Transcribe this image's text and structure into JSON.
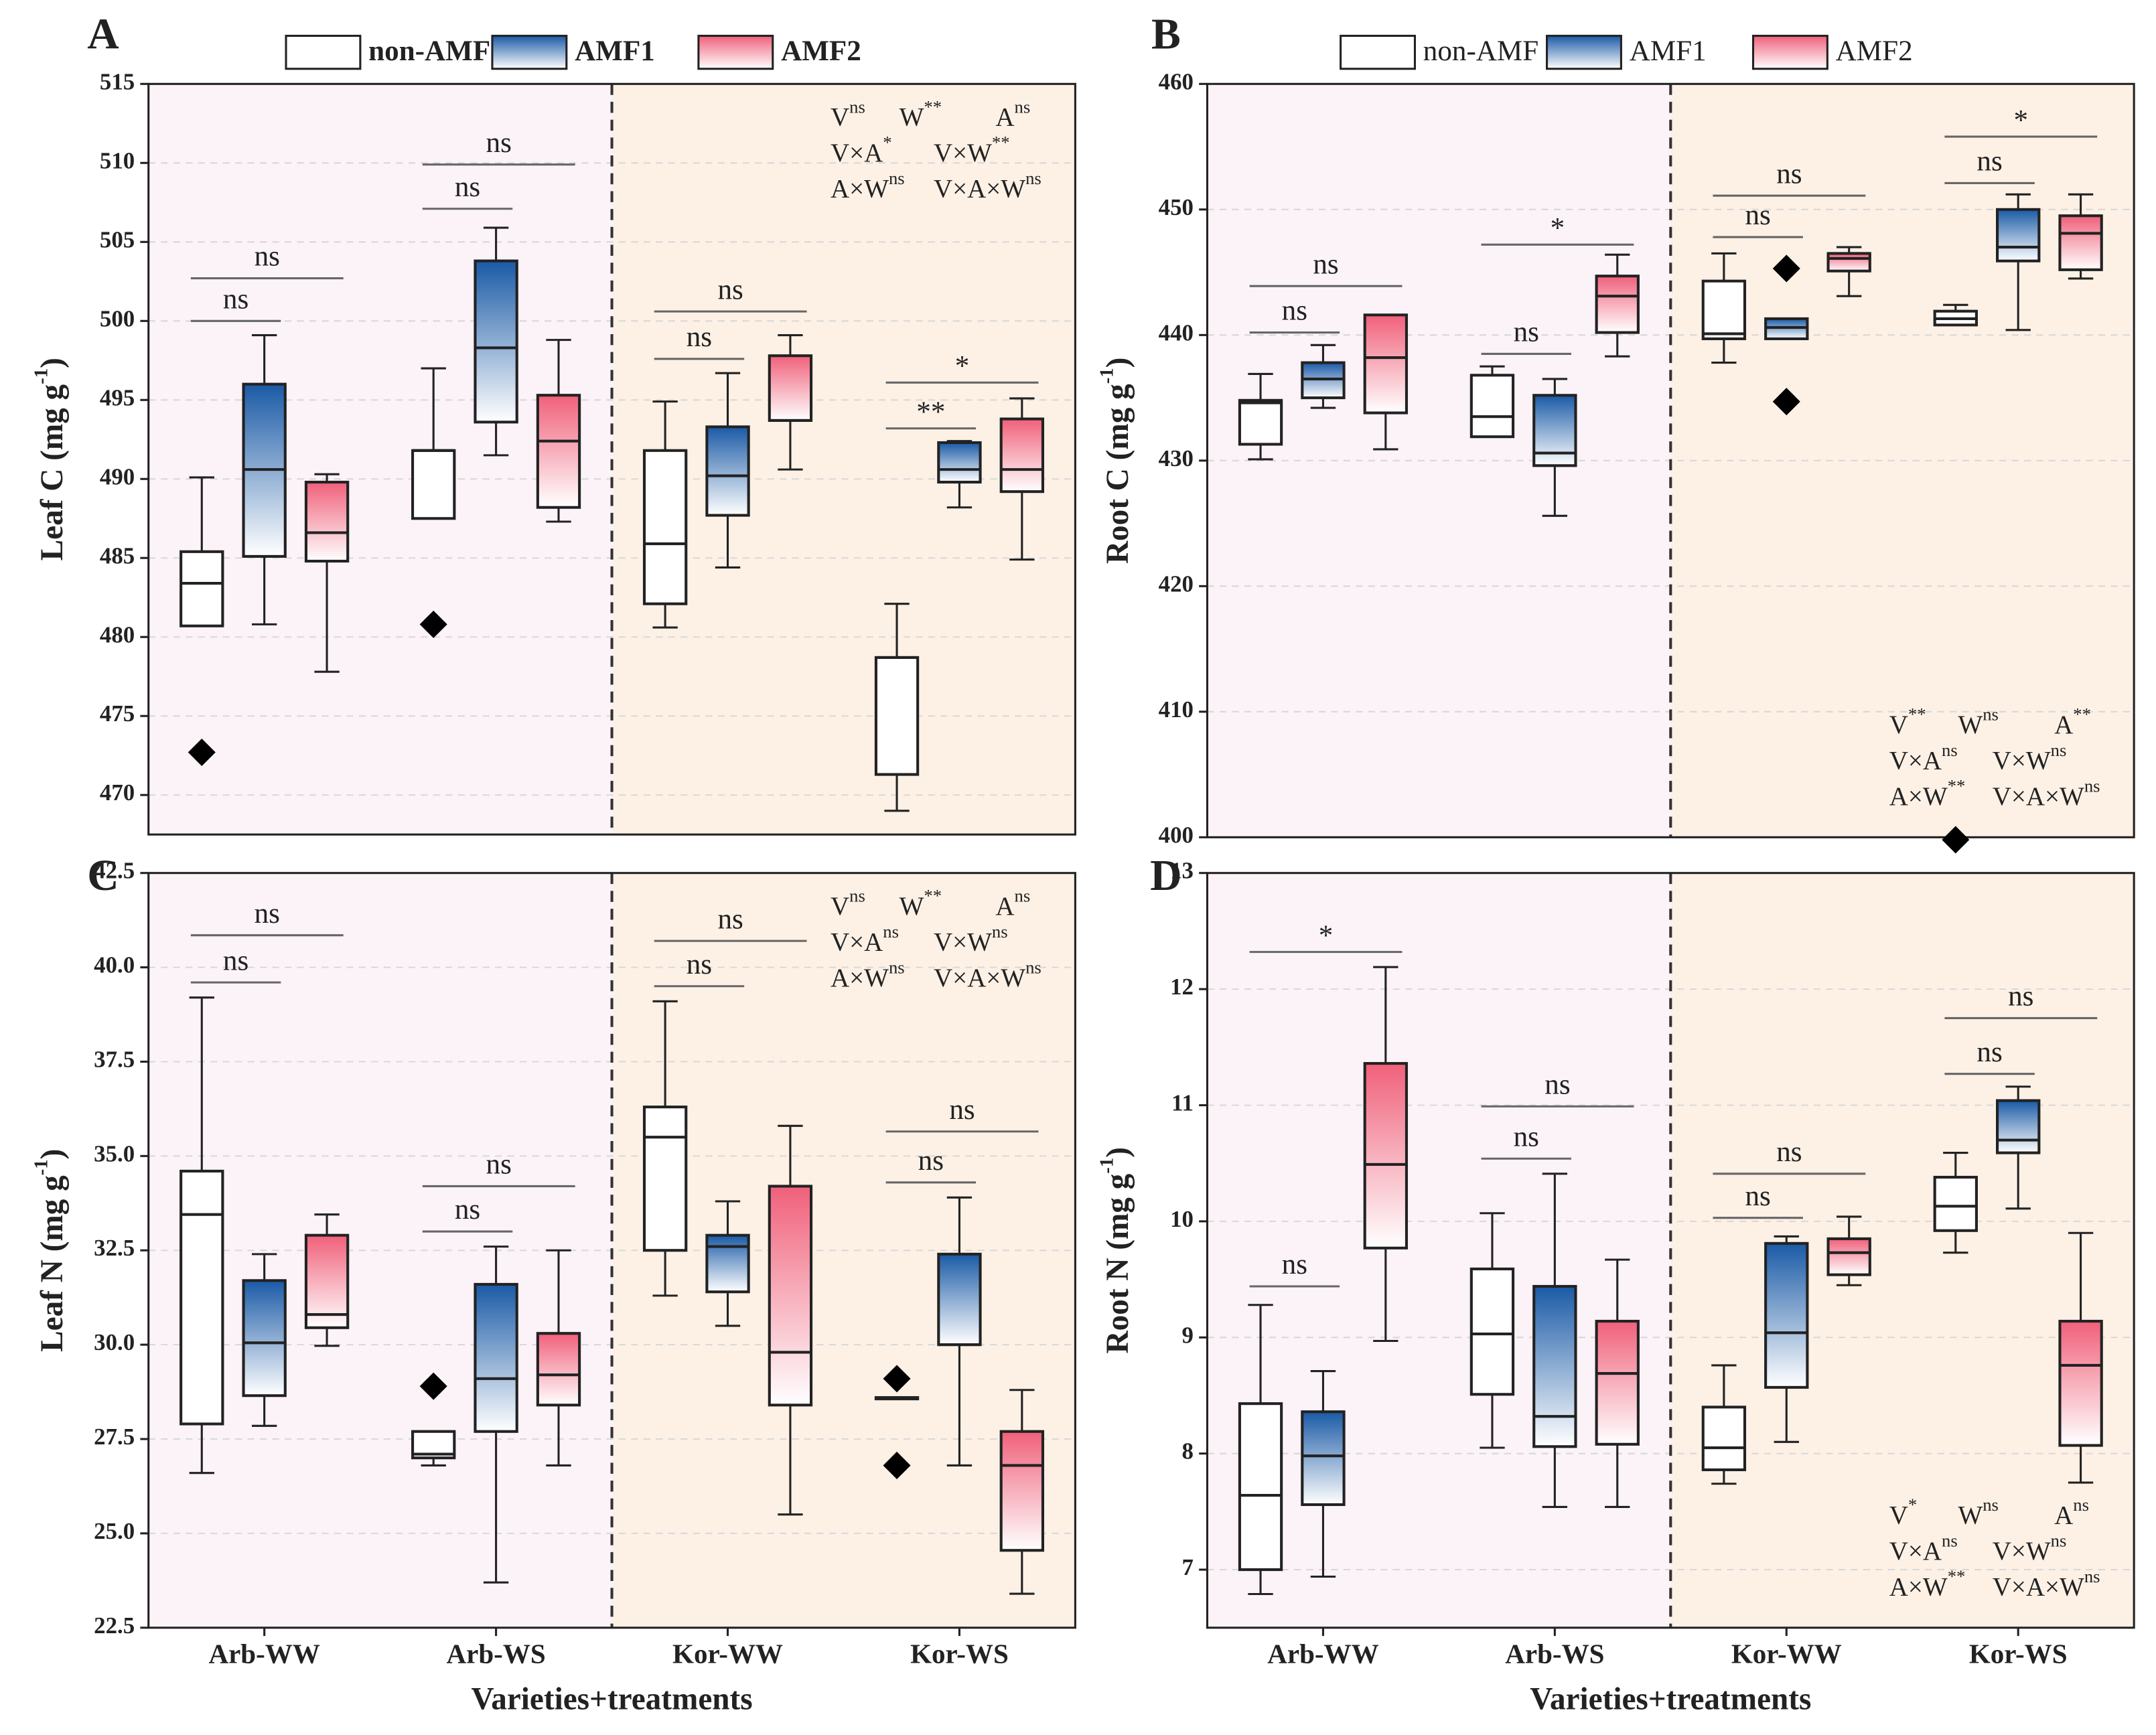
{
  "chart_data": [
    {
      "type": "box",
      "panel": "A",
      "ylabel": {
        "main": "Leaf C (mg g",
        "sup": "-1",
        "end": ")"
      },
      "ylim": [
        467.5,
        515
      ],
      "yticks": [
        470,
        475,
        480,
        485,
        490,
        495,
        500,
        505,
        510,
        515
      ],
      "grid": true,
      "legend": true,
      "stats_corner": "top-right",
      "series": [
        {
          "name": "non-AMF",
          "color": "#ffffff",
          "boxes": [
            {
              "min": 480.7,
              "q1": 480.7,
              "median": 483.4,
              "q3": 485.4,
              "max": 490.1,
              "outliers": [
                472.7
              ]
            },
            {
              "min": 487.5,
              "q1": 487.5,
              "median": 491.8,
              "q3": 491.8,
              "max": 497.0,
              "outliers": [
                480.8
              ]
            },
            {
              "min": 480.6,
              "q1": 482.1,
              "median": 485.9,
              "q3": 491.8,
              "max": 494.9,
              "outliers": []
            },
            {
              "min": 469.0,
              "q1": 471.3,
              "median": 478.7,
              "q3": 478.7,
              "max": 482.1,
              "outliers": []
            }
          ]
        },
        {
          "name": "AMF1",
          "color": "#1a5aa6",
          "boxes": [
            {
              "min": 480.8,
              "q1": 485.1,
              "median": 490.6,
              "q3": 496.0,
              "max": 499.1,
              "outliers": []
            },
            {
              "min": 491.5,
              "q1": 493.6,
              "median": 498.3,
              "q3": 503.8,
              "max": 505.9,
              "outliers": []
            },
            {
              "min": 484.4,
              "q1": 487.7,
              "median": 490.2,
              "q3": 493.3,
              "max": 496.7,
              "outliers": []
            },
            {
              "min": 488.2,
              "q1": 489.8,
              "median": 490.6,
              "q3": 492.3,
              "max": 492.4,
              "outliers": []
            }
          ]
        },
        {
          "name": "AMF2",
          "color": "#f0607a",
          "boxes": [
            {
              "min": 477.8,
              "q1": 484.8,
              "median": 486.6,
              "q3": 489.8,
              "max": 490.3,
              "outliers": []
            },
            {
              "min": 487.3,
              "q1": 488.2,
              "median": 492.4,
              "q3": 495.3,
              "max": 498.8,
              "outliers": []
            },
            {
              "min": 490.6,
              "q1": 493.7,
              "median": 493.7,
              "q3": 497.8,
              "max": 499.1,
              "outliers": []
            },
            {
              "min": 484.9,
              "q1": 489.2,
              "median": 490.6,
              "q3": 493.8,
              "max": 495.1,
              "outliers": []
            }
          ]
        }
      ],
      "brackets": [
        {
          "text": "ns",
          "category": 0,
          "from": 0,
          "to": 2,
          "y": 502.7
        },
        {
          "text": "ns",
          "category": 0,
          "from": 0,
          "to": 1,
          "y": 500.0
        },
        {
          "text": "ns",
          "category": 1,
          "from": 0,
          "to": 2,
          "y": 509.9
        },
        {
          "text": "ns",
          "category": 1,
          "from": 0,
          "to": 1,
          "y": 507.1
        },
        {
          "text": "ns",
          "category": 2,
          "from": 0,
          "to": 2,
          "y": 500.6
        },
        {
          "text": "ns",
          "category": 2,
          "from": 0,
          "to": 1,
          "y": 497.6
        },
        {
          "text": "*",
          "category": 3,
          "from": 0,
          "to": 2,
          "y": 496.1
        },
        {
          "text": "**",
          "category": 3,
          "from": 0,
          "to": 1,
          "y": 493.2
        }
      ],
      "stats": [
        {
          "term": "V",
          "sig": "ns"
        },
        {
          "term": "W",
          "sig": "**"
        },
        {
          "term": "A",
          "sig": "ns"
        },
        {
          "term": "V×A",
          "sig": "*"
        },
        {
          "term": "V×W",
          "sig": "**"
        },
        {
          "term": "A×W",
          "sig": "ns"
        },
        {
          "term": "V×A×W",
          "sig": "ns"
        }
      ]
    },
    {
      "type": "box",
      "panel": "B",
      "ylabel": {
        "main": "Root C (mg g",
        "sup": "-1",
        "end": ")"
      },
      "ylim": [
        400,
        460
      ],
      "yticks": [
        400,
        410,
        420,
        430,
        440,
        450,
        460
      ],
      "grid": true,
      "legend": true,
      "stats_corner": "bottom-right",
      "series": [
        {
          "name": "non-AMF",
          "color": "#ffffff",
          "boxes": [
            {
              "min": 430.1,
              "q1": 431.3,
              "median": 434.6,
              "q3": 434.8,
              "max": 436.9,
              "outliers": []
            },
            {
              "min": 431.9,
              "q1": 431.9,
              "median": 433.5,
              "q3": 436.8,
              "max": 437.5,
              "outliers": []
            },
            {
              "min": 437.8,
              "q1": 439.7,
              "median": 440.1,
              "q3": 444.3,
              "max": 446.5,
              "outliers": []
            },
            {
              "min": 440.8,
              "q1": 440.8,
              "median": 441.3,
              "q3": 441.9,
              "max": 442.4,
              "outliers": [
                399.8
              ]
            }
          ]
        },
        {
          "name": "AMF1",
          "color": "#1a5aa6",
          "boxes": [
            {
              "min": 434.2,
              "q1": 435.0,
              "median": 436.5,
              "q3": 437.8,
              "max": 439.2,
              "outliers": []
            },
            {
              "min": 425.6,
              "q1": 429.6,
              "median": 430.6,
              "q3": 435.2,
              "max": 436.5,
              "outliers": []
            },
            {
              "min": 439.7,
              "q1": 439.7,
              "median": 440.6,
              "q3": 441.3,
              "max": 441.3,
              "outliers": [
                445.3,
                434.7
              ]
            },
            {
              "min": 440.4,
              "q1": 445.9,
              "median": 447.0,
              "q3": 450.0,
              "max": 451.2,
              "outliers": []
            }
          ]
        },
        {
          "name": "AMF2",
          "color": "#f0607a",
          "boxes": [
            {
              "min": 430.9,
              "q1": 433.8,
              "median": 438.2,
              "q3": 441.6,
              "max": 441.6,
              "outliers": []
            },
            {
              "min": 438.3,
              "q1": 440.2,
              "median": 443.1,
              "q3": 444.7,
              "max": 446.4,
              "outliers": []
            },
            {
              "min": 443.1,
              "q1": 445.1,
              "median": 446.1,
              "q3": 446.5,
              "max": 447.0,
              "outliers": []
            },
            {
              "min": 444.5,
              "q1": 445.2,
              "median": 448.1,
              "q3": 449.5,
              "max": 451.2,
              "outliers": []
            }
          ]
        }
      ],
      "brackets": [
        {
          "text": "ns",
          "category": 0,
          "from": 0,
          "to": 2,
          "y": 443.9
        },
        {
          "text": "ns",
          "category": 0,
          "from": 0,
          "to": 1,
          "y": 440.2
        },
        {
          "text": "*",
          "category": 1,
          "from": 0,
          "to": 2,
          "y": 447.2
        },
        {
          "text": "ns",
          "category": 1,
          "from": 0,
          "to": 1,
          "y": 438.5
        },
        {
          "text": "ns",
          "category": 2,
          "from": 0,
          "to": 2,
          "y": 451.1
        },
        {
          "text": "ns",
          "category": 2,
          "from": 0,
          "to": 1,
          "y": 447.8
        },
        {
          "text": "*",
          "category": 3,
          "from": 0,
          "to": 2,
          "y": 455.8
        },
        {
          "text": "ns",
          "category": 3,
          "from": 0,
          "to": 1,
          "y": 452.1
        }
      ],
      "stats": [
        {
          "term": "V",
          "sig": "**"
        },
        {
          "term": "W",
          "sig": "ns"
        },
        {
          "term": "A",
          "sig": "**"
        },
        {
          "term": "V×A",
          "sig": "ns"
        },
        {
          "term": "V×W",
          "sig": "ns"
        },
        {
          "term": "A×W",
          "sig": "**"
        },
        {
          "term": "V×A×W",
          "sig": "ns"
        }
      ]
    },
    {
      "type": "box",
      "panel": "C",
      "ylabel": {
        "main": "Leaf N (mg g",
        "sup": "-1",
        "end": ")"
      },
      "xlabel": "Varieties+treatments",
      "categories": [
        "Arb-WW",
        "Arb-WS",
        "Kor-WW",
        "Kor-WS"
      ],
      "ylim": [
        22.5,
        42.5
      ],
      "yticks": [
        22.5,
        {
          "value": 25,
          "label": "25.0"
        },
        27.5,
        {
          "value": 30,
          "label": "30.0"
        },
        32.5,
        {
          "value": 35,
          "label": "35.0"
        },
        37.5,
        {
          "value": 40,
          "label": "40.0"
        },
        42.5
      ],
      "grid": true,
      "legend": false,
      "stats_corner": "top-right",
      "series": [
        {
          "color": "#ffffff",
          "boxes": [
            {
              "min": 26.6,
              "q1": 27.9,
              "median": 33.45,
              "q3": 34.6,
              "max": 39.2,
              "outliers": []
            },
            {
              "min": 26.8,
              "q1": 27.0,
              "median": 27.1,
              "q3": 27.7,
              "max": 27.7,
              "outliers": [
                28.9
              ]
            },
            {
              "min": 31.3,
              "q1": 32.5,
              "median": 35.5,
              "q3": 36.3,
              "max": 39.1,
              "outliers": []
            },
            {
              "min": 28.6,
              "q1": 28.6,
              "median": 28.6,
              "q3": 28.6,
              "max": 28.6,
              "outliers": [
                29.1,
                26.8
              ]
            }
          ]
        },
        {
          "color": "#1a5aa6",
          "boxes": [
            {
              "min": 27.85,
              "q1": 28.65,
              "median": 30.05,
              "q3": 31.7,
              "max": 32.4,
              "outliers": []
            },
            {
              "min": 23.7,
              "q1": 27.7,
              "median": 29.1,
              "q3": 31.6,
              "max": 32.6,
              "outliers": []
            },
            {
              "min": 30.5,
              "q1": 31.4,
              "median": 32.6,
              "q3": 32.9,
              "max": 33.8,
              "outliers": []
            },
            {
              "min": 26.8,
              "q1": 30.0,
              "median": 30.0,
              "q3": 32.4,
              "max": 33.9,
              "outliers": []
            }
          ]
        },
        {
          "color": "#f0607a",
          "boxes": [
            {
              "min": 29.97,
              "q1": 30.45,
              "median": 30.8,
              "q3": 32.9,
              "max": 33.45,
              "outliers": []
            },
            {
              "min": 26.8,
              "q1": 28.4,
              "median": 29.2,
              "q3": 30.3,
              "max": 32.5,
              "outliers": []
            },
            {
              "min": 25.5,
              "q1": 28.4,
              "median": 29.8,
              "q3": 34.2,
              "max": 35.8,
              "outliers": []
            },
            {
              "min": 23.4,
              "q1": 24.55,
              "median": 26.8,
              "q3": 27.7,
              "max": 28.8,
              "outliers": []
            }
          ]
        }
      ],
      "brackets": [
        {
          "text": "ns",
          "category": 0,
          "from": 0,
          "to": 2,
          "y": 40.85
        },
        {
          "text": "ns",
          "category": 0,
          "from": 0,
          "to": 1,
          "y": 39.6
        },
        {
          "text": "ns",
          "category": 1,
          "from": 0,
          "to": 2,
          "y": 34.2
        },
        {
          "text": "ns",
          "category": 1,
          "from": 0,
          "to": 1,
          "y": 33.0
        },
        {
          "text": "ns",
          "category": 2,
          "from": 0,
          "to": 2,
          "y": 40.7
        },
        {
          "text": "ns",
          "category": 2,
          "from": 0,
          "to": 1,
          "y": 39.5
        },
        {
          "text": "ns",
          "category": 3,
          "from": 0,
          "to": 2,
          "y": 35.65
        },
        {
          "text": "ns",
          "category": 3,
          "from": 0,
          "to": 1,
          "y": 34.3
        }
      ],
      "stats": [
        {
          "term": "V",
          "sig": "ns"
        },
        {
          "term": "W",
          "sig": "**"
        },
        {
          "term": "A",
          "sig": "ns"
        },
        {
          "term": "V×A",
          "sig": "ns"
        },
        {
          "term": "V×W",
          "sig": "ns"
        },
        {
          "term": "A×W",
          "sig": "ns"
        },
        {
          "term": "V×A×W",
          "sig": "ns"
        }
      ]
    },
    {
      "type": "box",
      "panel": "D",
      "ylabel": {
        "main": "Root N (mg g",
        "sup": "-1",
        "end": ")"
      },
      "xlabel": "Varieties+treatments",
      "categories": [
        "Arb-WW",
        "Arb-WS",
        "Kor-WW",
        "Kor-WS"
      ],
      "ylim": [
        6.5,
        13
      ],
      "yticks": [
        7,
        8,
        9,
        10,
        11,
        12,
        13
      ],
      "grid": true,
      "legend": false,
      "stats_corner": "bottom-right",
      "series": [
        {
          "color": "#ffffff",
          "boxes": [
            {
              "min": 6.79,
              "q1": 7.0,
              "median": 7.64,
              "q3": 8.43,
              "max": 9.28,
              "outliers": []
            },
            {
              "min": 8.05,
              "q1": 8.51,
              "median": 9.03,
              "q3": 9.59,
              "max": 10.07,
              "outliers": []
            },
            {
              "min": 7.74,
              "q1": 7.86,
              "median": 8.05,
              "q3": 8.4,
              "max": 8.76,
              "outliers": []
            },
            {
              "min": 9.73,
              "q1": 9.92,
              "median": 10.13,
              "q3": 10.38,
              "max": 10.59,
              "outliers": []
            }
          ]
        },
        {
          "color": "#1a5aa6",
          "boxes": [
            {
              "min": 6.94,
              "q1": 7.56,
              "median": 7.98,
              "q3": 8.36,
              "max": 8.71,
              "outliers": []
            },
            {
              "min": 7.54,
              "q1": 8.06,
              "median": 8.32,
              "q3": 9.44,
              "max": 10.41,
              "outliers": []
            },
            {
              "min": 8.1,
              "q1": 8.57,
              "median": 9.04,
              "q3": 9.81,
              "max": 9.87,
              "outliers": []
            },
            {
              "min": 10.11,
              "q1": 10.59,
              "median": 10.7,
              "q3": 11.04,
              "max": 11.16,
              "outliers": []
            }
          ]
        },
        {
          "color": "#f0607a",
          "boxes": [
            {
              "min": 8.97,
              "q1": 9.77,
              "median": 10.49,
              "q3": 11.36,
              "max": 12.19,
              "outliers": []
            },
            {
              "min": 7.54,
              "q1": 8.08,
              "median": 8.69,
              "q3": 9.14,
              "max": 9.67,
              "outliers": []
            },
            {
              "min": 9.45,
              "q1": 9.54,
              "median": 9.73,
              "q3": 9.85,
              "max": 10.04,
              "outliers": []
            },
            {
              "min": 7.75,
              "q1": 8.07,
              "median": 8.76,
              "q3": 9.14,
              "max": 9.9,
              "outliers": []
            }
          ]
        }
      ],
      "brackets": [
        {
          "text": "*",
          "category": 0,
          "from": 0,
          "to": 2,
          "y": 12.32
        },
        {
          "text": "ns",
          "category": 0,
          "from": 0,
          "to": 1,
          "y": 9.44
        },
        {
          "text": "ns",
          "category": 1,
          "from": 0,
          "to": 2,
          "y": 10.99
        },
        {
          "text": "ns",
          "category": 1,
          "from": 0,
          "to": 1,
          "y": 10.54
        },
        {
          "text": "ns",
          "category": 2,
          "from": 0,
          "to": 2,
          "y": 10.41
        },
        {
          "text": "ns",
          "category": 2,
          "from": 0,
          "to": 1,
          "y": 10.03
        },
        {
          "text": "ns",
          "category": 3,
          "from": 0,
          "to": 2,
          "y": 11.75
        },
        {
          "text": "ns",
          "category": 3,
          "from": 0,
          "to": 1,
          "y": 11.27
        }
      ],
      "stats": [
        {
          "term": "V",
          "sig": "*"
        },
        {
          "term": "W",
          "sig": "ns"
        },
        {
          "term": "A",
          "sig": "ns"
        },
        {
          "term": "V×A",
          "sig": "ns"
        },
        {
          "term": "V×W",
          "sig": "ns"
        },
        {
          "term": "A×W",
          "sig": "**"
        },
        {
          "term": "V×A×W",
          "sig": "ns"
        }
      ]
    }
  ]
}
